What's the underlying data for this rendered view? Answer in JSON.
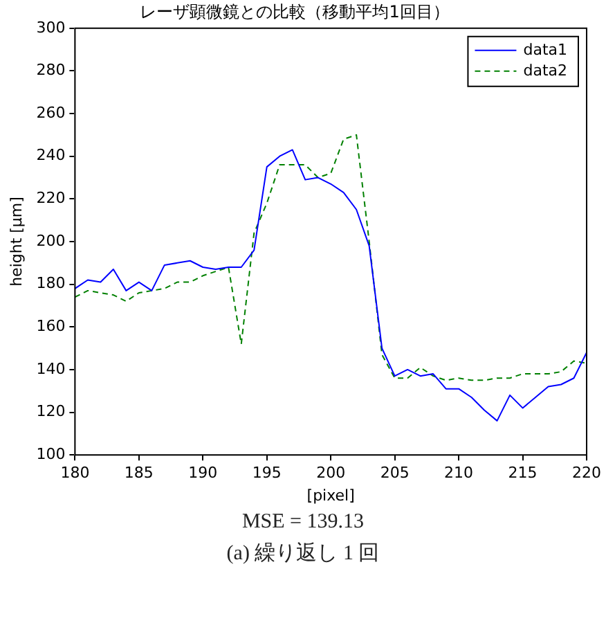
{
  "chart_data": {
    "type": "line",
    "title": "レーザ顕微鏡との比較（移動平均1回目）",
    "xlabel": "[pixel]",
    "ylabel": "height [μm]",
    "x": [
      180,
      181,
      182,
      183,
      184,
      185,
      186,
      187,
      188,
      189,
      190,
      191,
      192,
      193,
      194,
      195,
      196,
      197,
      198,
      199,
      200,
      201,
      202,
      203,
      204,
      205,
      206,
      207,
      208,
      209,
      210,
      211,
      212,
      213,
      214,
      215,
      216,
      217,
      218,
      219,
      220
    ],
    "series": [
      {
        "name": "data1",
        "color": "#0000ff",
        "line_style": "solid",
        "values": [
          178,
          182,
          181,
          187,
          177,
          181,
          177,
          189,
          190,
          191,
          188,
          187,
          188,
          188,
          196,
          235,
          240,
          243,
          229,
          230,
          227,
          223,
          215,
          198,
          150,
          137,
          140,
          137,
          138,
          131,
          131,
          127,
          121,
          116,
          128,
          122,
          127,
          132,
          133,
          136,
          148
        ]
      },
      {
        "name": "data2",
        "color": "#008000",
        "line_style": "dashed",
        "values": [
          174,
          177,
          176,
          175,
          172,
          176,
          177,
          178,
          181,
          181,
          184,
          186,
          188,
          152,
          204,
          218,
          236,
          236,
          236,
          230,
          232,
          248,
          250,
          200,
          147,
          136,
          136,
          141,
          137,
          135,
          136,
          135,
          135,
          136,
          136,
          138,
          138,
          138,
          139,
          144,
          143
        ]
      }
    ],
    "xlim": [
      180,
      220
    ],
    "xticks": [
      180,
      185,
      190,
      195,
      200,
      205,
      210,
      215,
      220
    ],
    "ylim": [
      100,
      300
    ],
    "yticks": [
      100,
      120,
      140,
      160,
      180,
      200,
      220,
      240,
      260,
      280,
      300
    ],
    "grid": false,
    "legend": "top right",
    "marker": "none",
    "annotations": [
      "MSE = 139.13",
      "(a) 繰り返し 1 回"
    ]
  }
}
